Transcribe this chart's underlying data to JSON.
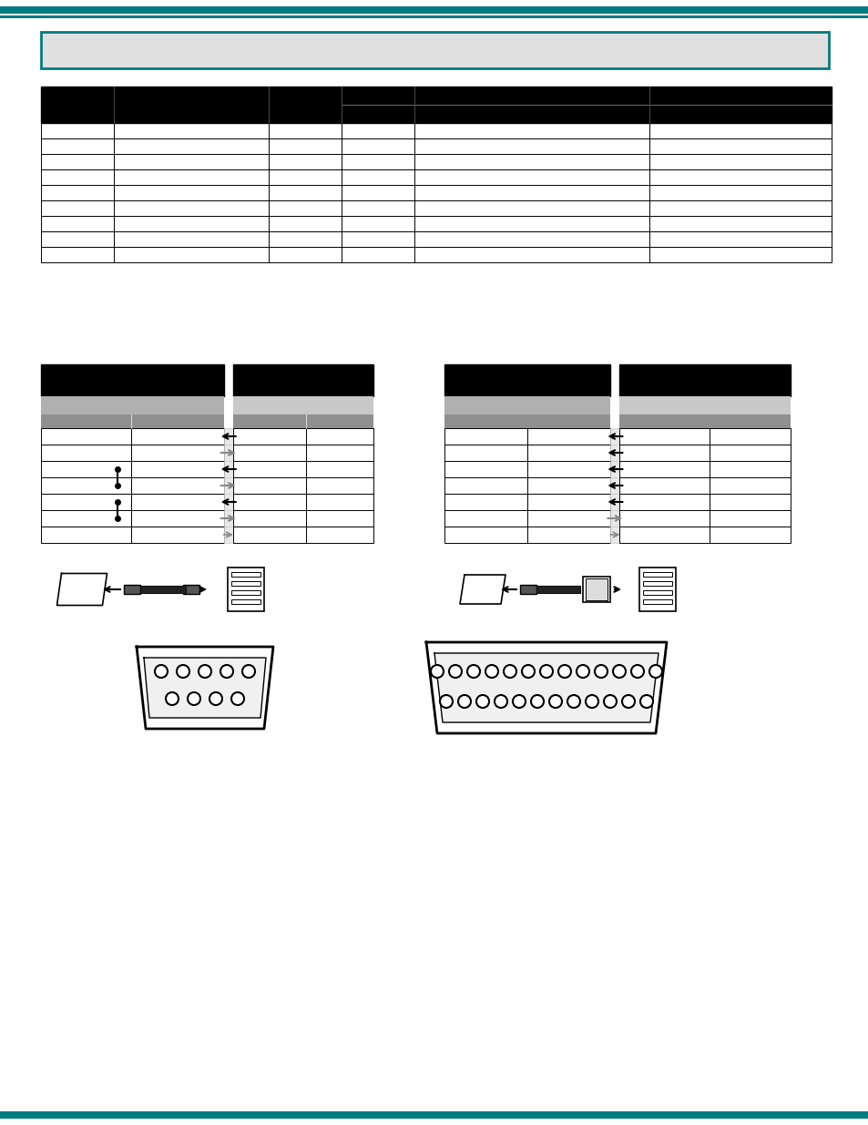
{
  "page_bg": "#ffffff",
  "teal_color": "#007B7F",
  "black": "#000000",
  "white": "#ffffff",
  "gray_light": "#d0d0d0",
  "gray_med": "#a0a0a0",
  "gray_dark": "#808080",
  "top_bar_height": 0.012,
  "header_box_color": "#d3d3d3",
  "table1_header_color": "#000000",
  "table1_rows": 9,
  "table1_cols": 6,
  "table2_rows": 8,
  "table2_cols": 5,
  "bottom_bar_color": "#007B7F"
}
